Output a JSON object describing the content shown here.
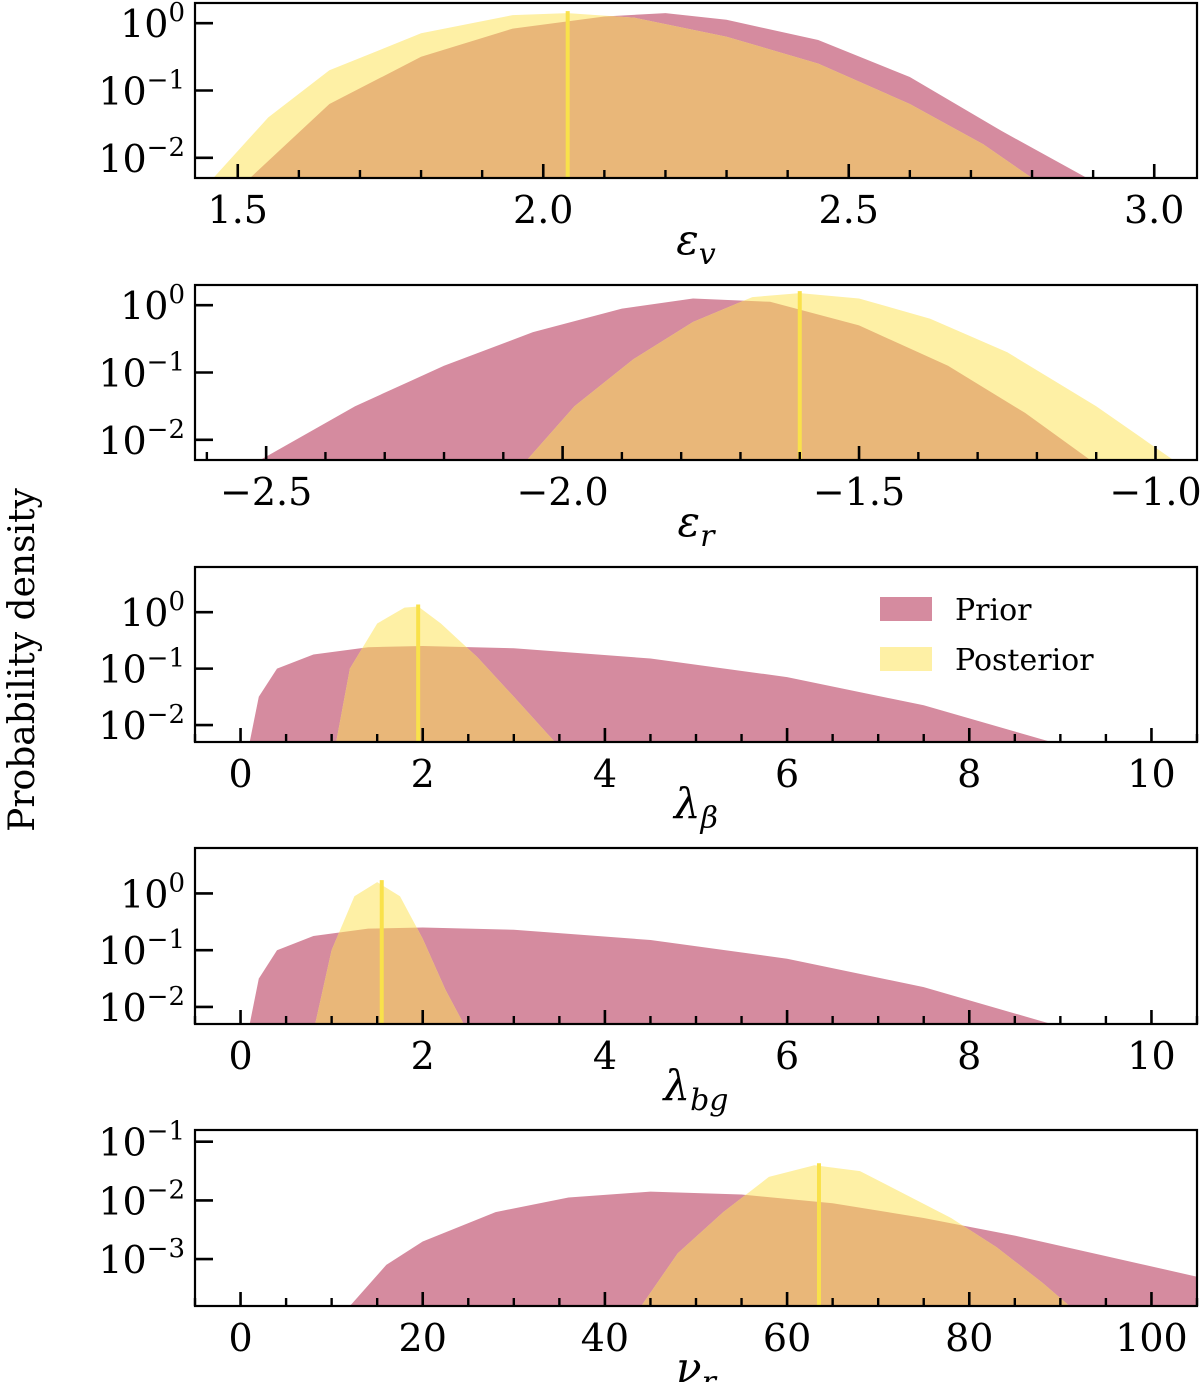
{
  "figure": {
    "ylabel": "Probability density",
    "legend": {
      "prior_label": "Prior",
      "posterior_label": "Posterior",
      "placement": "top-right of third panel"
    },
    "colors": {
      "prior": "#d58b9f",
      "posterior": "#fef0a5",
      "overlap": "#e9b779",
      "marker": "#f9e14b",
      "axis": "#000000"
    }
  },
  "chart_data": [
    {
      "type": "area",
      "title": "",
      "xlabel": "ε_v",
      "xlabel_main": "ε",
      "xlabel_sub": "v",
      "ylabel": "Probability density",
      "yscale": "log",
      "xlim": [
        1.43,
        3.07
      ],
      "ylim_log10": [
        -2.3,
        0.3
      ],
      "xticks": [
        1.5,
        2.0,
        2.5,
        3.0
      ],
      "xtick_labels": [
        "1.5",
        "2.0",
        "2.5",
        "3.0"
      ],
      "xminor_step": 0.1,
      "yticks_exp": [
        0,
        -1,
        -2
      ],
      "series": [
        {
          "name": "Prior",
          "x": [
            1.52,
            1.65,
            1.8,
            1.95,
            2.1,
            2.2,
            2.3,
            2.45,
            2.6,
            2.75,
            2.89
          ],
          "log10_y": [
            -2.3,
            -1.2,
            -0.5,
            -0.08,
            0.1,
            0.15,
            0.05,
            -0.25,
            -0.8,
            -1.6,
            -2.3
          ]
        },
        {
          "name": "Posterior",
          "x": [
            1.46,
            1.55,
            1.65,
            1.8,
            1.95,
            2.04,
            2.15,
            2.3,
            2.45,
            2.6,
            2.72,
            2.8
          ],
          "log10_y": [
            -2.3,
            -1.4,
            -0.7,
            -0.15,
            0.12,
            0.15,
            0.08,
            -0.2,
            -0.6,
            -1.2,
            -1.8,
            -2.3
          ]
        }
      ],
      "marker_x": 2.04
    },
    {
      "type": "area",
      "title": "",
      "xlabel": "ε_r",
      "xlabel_main": "ε",
      "xlabel_sub": "r",
      "yscale": "log",
      "xlim": [
        -2.62,
        -0.93
      ],
      "ylim_log10": [
        -2.3,
        0.3
      ],
      "xticks": [
        -2.5,
        -2.0,
        -1.5,
        -1.0
      ],
      "xtick_labels": [
        "−2.5",
        "−2.0",
        "−1.5",
        "−1.0"
      ],
      "xminor_step": 0.1,
      "yticks_exp": [
        0,
        -1,
        -2
      ],
      "series": [
        {
          "name": "Prior",
          "x": [
            -2.51,
            -2.35,
            -2.2,
            -2.05,
            -1.9,
            -1.78,
            -1.65,
            -1.5,
            -1.35,
            -1.22,
            -1.11
          ],
          "log10_y": [
            -2.3,
            -1.5,
            -0.9,
            -0.4,
            -0.05,
            0.1,
            0.05,
            -0.3,
            -0.9,
            -1.6,
            -2.3
          ]
        },
        {
          "name": "Posterior",
          "x": [
            -2.06,
            -1.98,
            -1.88,
            -1.78,
            -1.68,
            -1.6,
            -1.5,
            -1.38,
            -1.25,
            -1.1,
            -0.97
          ],
          "log10_y": [
            -2.3,
            -1.5,
            -0.8,
            -0.25,
            0.12,
            0.18,
            0.1,
            -0.2,
            -0.7,
            -1.5,
            -2.3
          ]
        }
      ],
      "marker_x": -1.6
    },
    {
      "type": "area",
      "title": "",
      "xlabel": "λ_β",
      "xlabel_main": "λ",
      "xlabel_sub": "β",
      "yscale": "log",
      "xlim": [
        -0.5,
        10.5
      ],
      "ylim_log10": [
        -2.3,
        0.8
      ],
      "xticks": [
        0,
        2,
        4,
        6,
        8,
        10
      ],
      "xtick_labels": [
        "0",
        "2",
        "4",
        "6",
        "8",
        "10"
      ],
      "xminor_step": 0.5,
      "yticks_exp": [
        0,
        -1,
        -2
      ],
      "series": [
        {
          "name": "Prior",
          "x": [
            0.1,
            0.2,
            0.4,
            0.8,
            1.4,
            2.0,
            3.0,
            4.5,
            6.0,
            7.5,
            8.9
          ],
          "log10_y": [
            -2.3,
            -1.5,
            -1.0,
            -0.75,
            -0.62,
            -0.6,
            -0.64,
            -0.82,
            -1.15,
            -1.65,
            -2.3
          ]
        },
        {
          "name": "Posterior",
          "x": [
            1.05,
            1.2,
            1.5,
            1.8,
            1.95,
            2.2,
            2.6,
            3.0,
            3.45
          ],
          "log10_y": [
            -2.3,
            -1.0,
            -0.2,
            0.08,
            0.1,
            -0.2,
            -0.8,
            -1.5,
            -2.3
          ]
        }
      ],
      "marker_x": 1.95
    },
    {
      "type": "area",
      "title": "",
      "xlabel": "λ_bg",
      "xlabel_main": "λ",
      "xlabel_sub": "bg",
      "yscale": "log",
      "xlim": [
        -0.5,
        10.5
      ],
      "ylim_log10": [
        -2.3,
        0.8
      ],
      "xticks": [
        0,
        2,
        4,
        6,
        8,
        10
      ],
      "xtick_labels": [
        "0",
        "2",
        "4",
        "6",
        "8",
        "10"
      ],
      "xminor_step": 0.5,
      "yticks_exp": [
        0,
        -1,
        -2
      ],
      "series": [
        {
          "name": "Prior",
          "x": [
            0.1,
            0.2,
            0.4,
            0.8,
            1.4,
            2.0,
            3.0,
            4.5,
            6.0,
            7.5,
            8.9
          ],
          "log10_y": [
            -2.3,
            -1.5,
            -1.0,
            -0.75,
            -0.62,
            -0.6,
            -0.64,
            -0.82,
            -1.15,
            -1.65,
            -2.3
          ]
        },
        {
          "name": "Posterior",
          "x": [
            0.82,
            1.0,
            1.25,
            1.5,
            1.75,
            2.0,
            2.25,
            2.45
          ],
          "log10_y": [
            -2.3,
            -1.0,
            -0.05,
            0.2,
            -0.05,
            -0.8,
            -1.7,
            -2.3
          ]
        }
      ],
      "marker_x": 1.55
    },
    {
      "type": "area",
      "title": "",
      "xlabel": "ν_r",
      "xlabel_main": "ν",
      "xlabel_sub": "r",
      "yscale": "log",
      "xlim": [
        -5,
        105
      ],
      "ylim_log10": [
        -3.8,
        -0.8
      ],
      "xticks": [
        0,
        20,
        40,
        60,
        80,
        100
      ],
      "xtick_labels": [
        "0",
        "20",
        "40",
        "60",
        "80",
        "100"
      ],
      "xminor_step": 5,
      "yticks_exp": [
        -1,
        -2,
        -3
      ],
      "series": [
        {
          "name": "Prior",
          "x": [
            12,
            16,
            20,
            28,
            36,
            45,
            55,
            65,
            75,
            85,
            95,
            105
          ],
          "log10_y": [
            -3.8,
            -3.1,
            -2.7,
            -2.2,
            -1.95,
            -1.85,
            -1.9,
            -2.05,
            -2.3,
            -2.6,
            -2.95,
            -3.3
          ]
        },
        {
          "name": "Posterior",
          "x": [
            44,
            48,
            53,
            58,
            63,
            68,
            73,
            78,
            83,
            88,
            91
          ],
          "log10_y": [
            -3.8,
            -2.9,
            -2.2,
            -1.6,
            -1.4,
            -1.5,
            -1.9,
            -2.3,
            -2.8,
            -3.4,
            -3.8
          ]
        }
      ],
      "marker_x": 63.5
    }
  ]
}
